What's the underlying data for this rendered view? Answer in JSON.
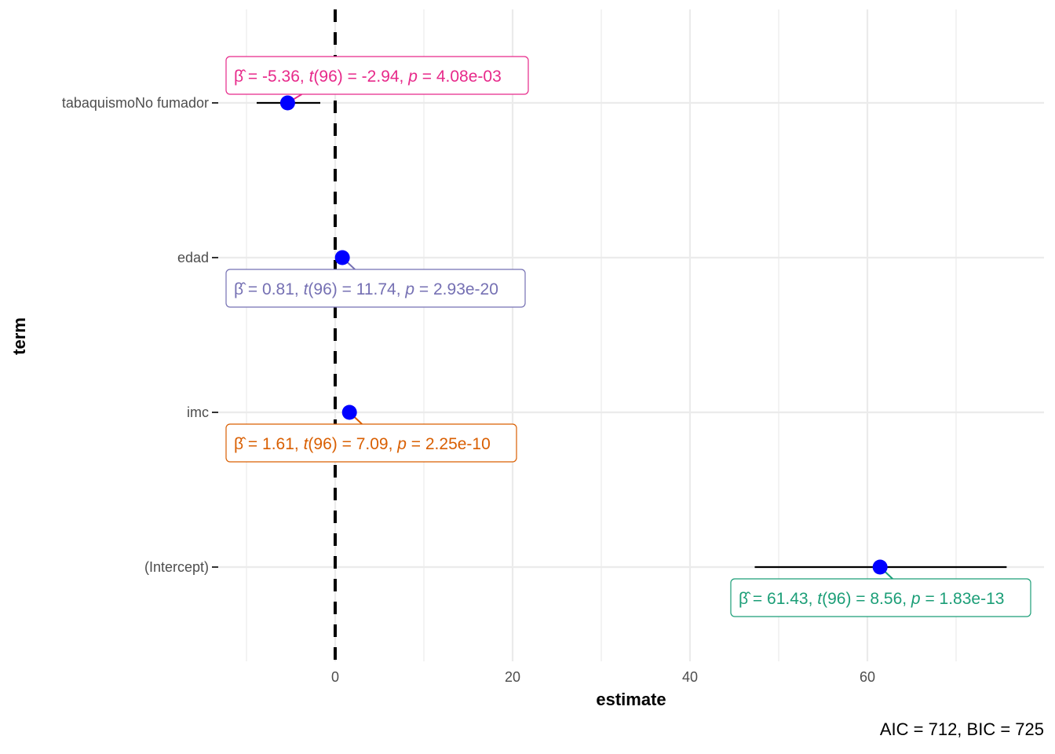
{
  "chart_data": {
    "type": "scatter",
    "subtype": "coefficient-plot",
    "xlabel": "estimate",
    "ylabel": "term",
    "xlim": [
      -13,
      80
    ],
    "x_ticks": [
      0,
      20,
      40,
      60
    ],
    "x_minor": [
      -10,
      10,
      30,
      50,
      70
    ],
    "grid": true,
    "reference_line": 0,
    "df": "96",
    "terms": [
      {
        "term": "tabaquismoNo fumador",
        "estimate": -5.36,
        "ci": [
          -8.85,
          -1.68
        ],
        "beta": "-5.36",
        "t": "-2.94",
        "p": "4.08e-03",
        "color": "#E7298A"
      },
      {
        "term": "edad",
        "estimate": 0.81,
        "ci": [
          0.67,
          0.95
        ],
        "beta": "0.81",
        "t": "11.74",
        "p": "2.93e-20",
        "color": "#7570B3"
      },
      {
        "term": "imc",
        "estimate": 1.61,
        "ci": [
          1.16,
          2.06
        ],
        "beta": "1.61",
        "t": "7.09",
        "p": "2.25e-10",
        "color": "#D95F02"
      },
      {
        "term": "(Intercept)",
        "estimate": 61.43,
        "ci": [
          47.3,
          75.7
        ],
        "beta": "61.43",
        "t": "8.56",
        "p": "1.83e-13",
        "color": "#1B9E77"
      }
    ],
    "point_color": "#0000FF",
    "caption": "AIC = 712, BIC = 725"
  }
}
